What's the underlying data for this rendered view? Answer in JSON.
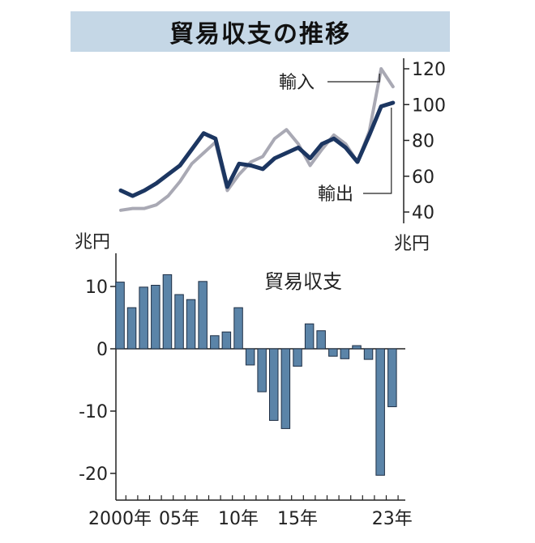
{
  "title": "貿易収支の推移",
  "chart_data": [
    {
      "type": "line",
      "x": [
        2000,
        2001,
        2002,
        2003,
        2004,
        2005,
        2006,
        2007,
        2008,
        2009,
        2010,
        2011,
        2012,
        2013,
        2014,
        2015,
        2016,
        2017,
        2018,
        2019,
        2020,
        2021,
        2022,
        2023
      ],
      "series": [
        {
          "name": "輸入",
          "values": [
            41,
            42,
            42,
            44,
            49,
            57,
            67,
            73,
            79,
            52,
            61,
            68,
            71,
            81,
            86,
            78,
            66,
            75,
            83,
            78,
            68,
            85,
            120,
            110
          ]
        },
        {
          "name": "輸出",
          "values": [
            52,
            49,
            52,
            56,
            61,
            66,
            75,
            84,
            81,
            54,
            67,
            66,
            64,
            70,
            73,
            76,
            70,
            78,
            81,
            76,
            68,
            83,
            99,
            101
          ]
        }
      ],
      "ylim": [
        40,
        120
      ],
      "yticks": [
        40,
        60,
        80,
        100,
        120
      ],
      "yunit": "兆円",
      "grid": false
    },
    {
      "type": "bar",
      "title": "貿易収支",
      "categories": [
        "2000",
        "2001",
        "2002",
        "2003",
        "2004",
        "2005",
        "2006",
        "2007",
        "2008",
        "2009",
        "2010",
        "2011",
        "2012",
        "2013",
        "2014",
        "2015",
        "2016",
        "2017",
        "2018",
        "2019",
        "2020",
        "2021",
        "2022",
        "2023"
      ],
      "values": [
        10.7,
        6.6,
        9.9,
        10.2,
        11.9,
        8.7,
        7.9,
        10.8,
        2.1,
        2.7,
        6.6,
        -2.6,
        -6.9,
        -11.5,
        -12.8,
        -2.8,
        4.0,
        2.9,
        -1.2,
        -1.6,
        0.5,
        -1.7,
        -20.3,
        -9.3
      ],
      "ylim": [
        -23,
        15
      ],
      "yticks": [
        10,
        0,
        -10,
        -20
      ],
      "ytick_labels": [
        "10",
        "0",
        "-10",
        "-20"
      ],
      "yunit": "兆円",
      "xtick_labels": [
        "2000年",
        "05年",
        "10年",
        "15年",
        "23年"
      ],
      "color": "#5b84a8",
      "grid": false
    }
  ]
}
